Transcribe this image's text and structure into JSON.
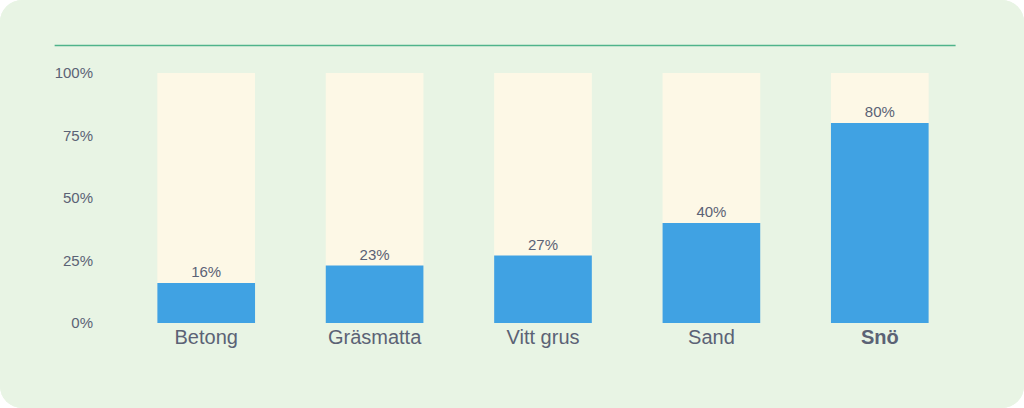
{
  "chart_data": {
    "type": "bar",
    "categories": [
      "Betong",
      "Gräsmatta",
      "Vitt grus",
      "Sand",
      "Snö"
    ],
    "values": [
      16,
      23,
      27,
      40,
      80
    ],
    "value_labels": [
      "16%",
      "23%",
      "27%",
      "40%",
      "80%"
    ],
    "color": "#40a2e3",
    "ylim": [
      0,
      100
    ],
    "yticks": [
      {
        "value": 0,
        "label": "0%"
      },
      {
        "value": 25,
        "label": "25%"
      },
      {
        "value": 50,
        "label": "50%"
      },
      {
        "value": 75,
        "label": "75%"
      },
      {
        "value": 100,
        "label": "100%"
      }
    ],
    "grid": false,
    "data_labels": true
  }
}
